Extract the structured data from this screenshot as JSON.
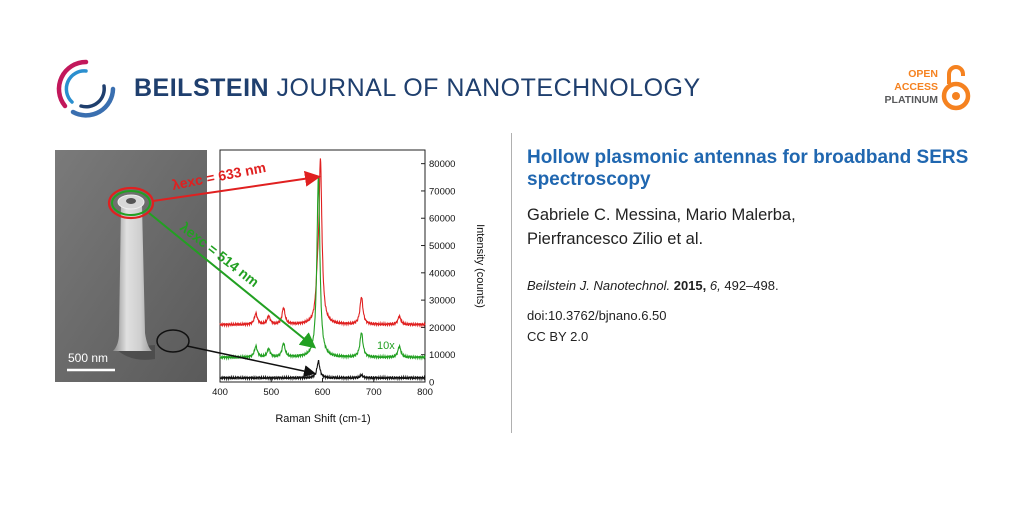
{
  "header": {
    "journal_bold": "BEILSTEIN",
    "journal_rest": "JOURNAL OF NANOTECHNOLOGY",
    "open_access": [
      "OPEN",
      "ACCESS",
      "PLATINUM"
    ]
  },
  "article": {
    "title": "Hollow plasmonic antennas for broadband SERS spectroscopy",
    "authors_line1": "Gabriele C. Messina, Mario Malerba,",
    "authors_line2": "Pierfrancesco Zilio et al.",
    "journal_abbrev": "Beilstein J. Nanotechnol.",
    "year": "2015,",
    "volume": "6,",
    "pages": "492–498.",
    "doi": "doi:10.3762/bjnano.6.50",
    "license": "CC BY 2.0"
  },
  "figure": {
    "scale_bar": "500 nm",
    "label_633": "λexc = 633 nm",
    "label_514": "λexc = 514 nm",
    "label_10x": "10x",
    "colors": {
      "red": "#e02020",
      "green": "#22a022",
      "black": "#111111"
    }
  },
  "chart_data": {
    "type": "line",
    "xlabel": "Raman Shift (cm-1)",
    "ylabel": "Intensity (counts)",
    "xlim": [
      400,
      800
    ],
    "ylim": [
      0,
      85000
    ],
    "xticks": [
      400,
      500,
      600,
      700,
      800
    ],
    "yticks": [
      0,
      10000,
      20000,
      30000,
      40000,
      50000,
      60000,
      70000,
      80000
    ],
    "series": [
      {
        "color": "red",
        "baseline": 21000,
        "peaks": [
          [
            470,
            4000
          ],
          [
            495,
            3000
          ],
          [
            524,
            6000
          ],
          [
            590,
            10000
          ],
          [
            596,
            58000
          ],
          [
            676,
            10000
          ],
          [
            750,
            3000
          ]
        ]
      },
      {
        "color": "green",
        "baseline": 9000,
        "peaks": [
          [
            470,
            4000
          ],
          [
            495,
            3000
          ],
          [
            524,
            5000
          ],
          [
            592,
            66000
          ],
          [
            676,
            9000
          ],
          [
            750,
            4000
          ]
        ]
      },
      {
        "color": "black",
        "baseline": 1500,
        "peaks": [
          [
            592,
            6000
          ],
          [
            676,
            1000
          ]
        ]
      }
    ]
  }
}
